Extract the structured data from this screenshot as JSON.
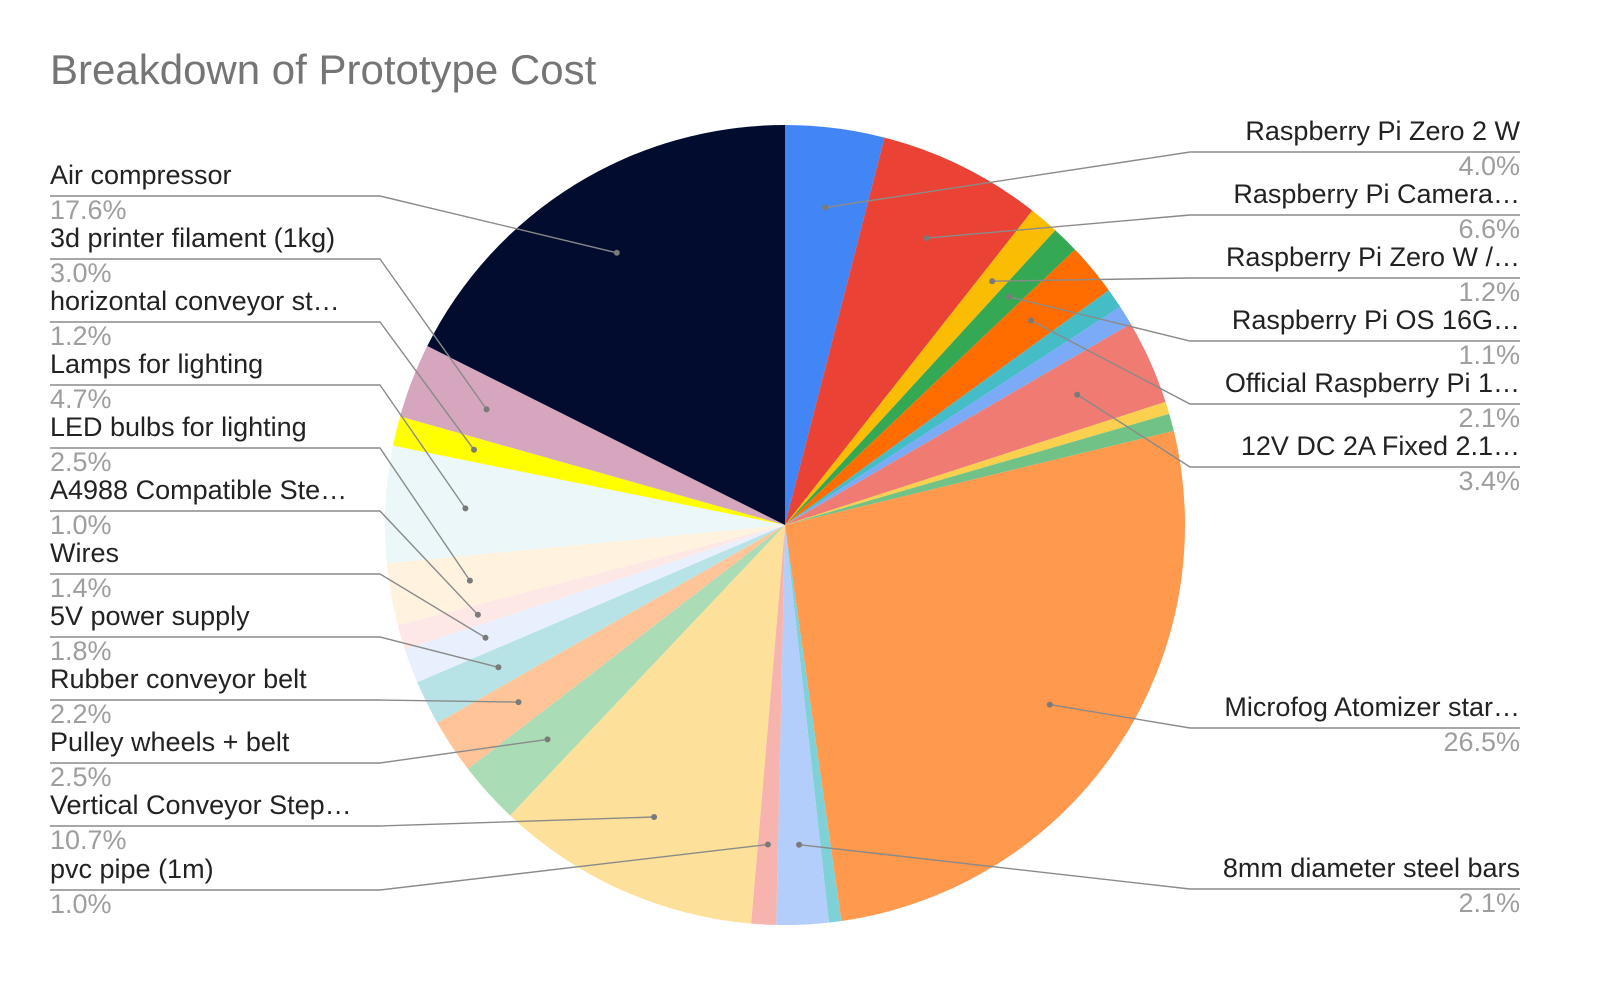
{
  "chart_data": {
    "type": "pie",
    "title": "Breakdown of Prototype Cost",
    "start_angle_deg": 0,
    "direction": "clockwise",
    "slices": [
      {
        "label": "Raspberry Pi Zero 2 W",
        "value": 4.0,
        "pct_text": "4.0%",
        "color": "#4285f4",
        "side": "right"
      },
      {
        "label": "Raspberry Pi Camera…",
        "value": 6.6,
        "pct_text": "6.6%",
        "color": "#ea4335",
        "side": "right"
      },
      {
        "label": "Raspberry Pi Zero W /…",
        "value": 1.2,
        "pct_text": "1.2%",
        "color": "#fbbc04",
        "side": "right"
      },
      {
        "label": "Raspberry Pi OS 16G…",
        "value": 1.1,
        "pct_text": "1.1%",
        "color": "#34a853",
        "side": "right"
      },
      {
        "label": "Official Raspberry Pi 1…",
        "value": 2.1,
        "pct_text": "2.1%",
        "color": "#ff6d01",
        "side": "right"
      },
      {
        "label": "",
        "value": 0.8,
        "pct_text": "",
        "color": "#46bdc6",
        "side": "none"
      },
      {
        "label": "",
        "value": 0.8,
        "pct_text": "",
        "color": "#7baaf7",
        "side": "none"
      },
      {
        "label": "12V DC 2A Fixed 2.1…",
        "value": 3.4,
        "pct_text": "3.4%",
        "color": "#f07b72",
        "side": "right"
      },
      {
        "label": "",
        "value": 0.5,
        "pct_text": "",
        "color": "#fcd04f",
        "side": "none"
      },
      {
        "label": "",
        "value": 0.7,
        "pct_text": "",
        "color": "#71c287",
        "side": "none"
      },
      {
        "label": "Microfog Atomizer star…",
        "value": 26.5,
        "pct_text": "26.5%",
        "color": "#ff994d",
        "side": "right"
      },
      {
        "label": "",
        "value": 0.5,
        "pct_text": "",
        "color": "#7ed1d7",
        "side": "none"
      },
      {
        "label": "8mm diameter steel bars",
        "value": 2.1,
        "pct_text": "2.1%",
        "color": "#b3cefb",
        "side": "right"
      },
      {
        "label": "pvc pipe (1m)",
        "value": 1.0,
        "pct_text": "1.0%",
        "color": "#f7b4ae",
        "side": "left"
      },
      {
        "label": "Vertical Conveyor Step…",
        "value": 10.7,
        "pct_text": "10.7%",
        "color": "#fde19a",
        "side": "left"
      },
      {
        "label": "Pulley wheels + belt",
        "value": 2.5,
        "pct_text": "2.5%",
        "color": "#aadcb6",
        "side": "left"
      },
      {
        "label": "Rubber conveyor belt",
        "value": 2.2,
        "pct_text": "2.2%",
        "color": "#ffc599",
        "side": "left"
      },
      {
        "label": "5V power supply",
        "value": 1.8,
        "pct_text": "1.8%",
        "color": "#b7e3e6",
        "side": "left"
      },
      {
        "label": "Wires",
        "value": 1.4,
        "pct_text": "1.4%",
        "color": "#e8f0fe",
        "side": "left"
      },
      {
        "label": "A4988 Compatible Ste…",
        "value": 1.0,
        "pct_text": "1.0%",
        "color": "#fde8e6",
        "side": "left"
      },
      {
        "label": "LED bulbs for lighting",
        "value": 2.5,
        "pct_text": "2.5%",
        "color": "#fff3e0",
        "side": "left"
      },
      {
        "label": "Lamps for lighting",
        "value": 4.7,
        "pct_text": "4.7%",
        "color": "#ebf7f8",
        "side": "left"
      },
      {
        "label": "horizontal conveyor st…",
        "value": 1.2,
        "pct_text": "1.2%",
        "color": "#ffff00",
        "side": "left"
      },
      {
        "label": "3d printer filament (1kg)",
        "value": 3.0,
        "pct_text": "3.0%",
        "color": "#d5a6bd",
        "side": "left"
      },
      {
        "label": "Air compressor",
        "value": 17.6,
        "pct_text": "17.6%",
        "color": "#020c2e",
        "side": "left"
      }
    ],
    "legend_placement": "side labels with leader lines"
  }
}
